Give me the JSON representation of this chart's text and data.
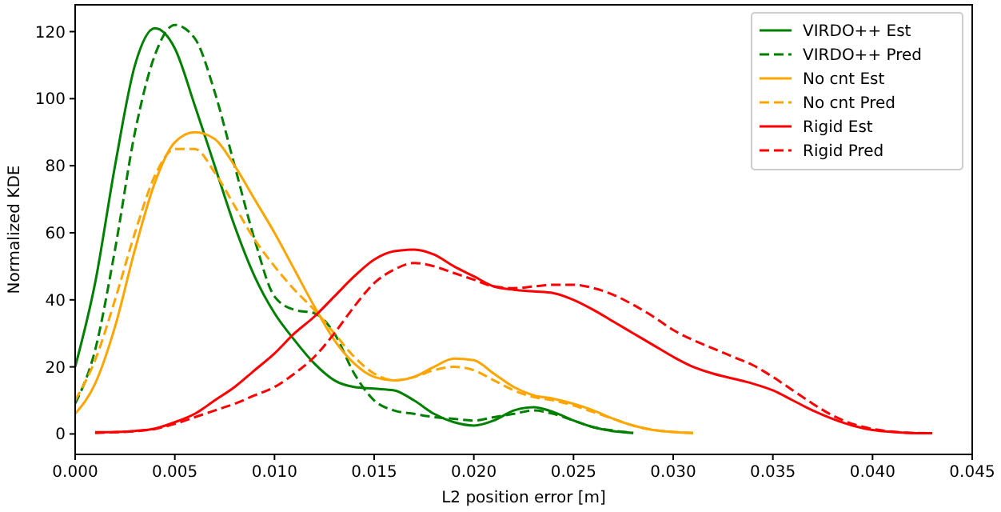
{
  "chart_data": {
    "type": "line",
    "xlabel": "L2 position error [m]",
    "ylabel": "Normalized KDE",
    "x": [
      0,
      0.001,
      0.002,
      0.003,
      0.004,
      0.005,
      0.006,
      0.007,
      0.008,
      0.009,
      0.01,
      0.011,
      0.012,
      0.013,
      0.014,
      0.015,
      0.016,
      0.017,
      0.018,
      0.019,
      0.02,
      0.021,
      0.022,
      0.023,
      0.024,
      0.025,
      0.026,
      0.027,
      0.028,
      0.029,
      0.03,
      0.031,
      0.032,
      0.033,
      0.034,
      0.035,
      0.036,
      0.037,
      0.038,
      0.039,
      0.04,
      0.041,
      0.042,
      0.043
    ],
    "series": [
      {
        "name": "VIRDO++ Est",
        "color": "#008000",
        "line_style": "solid",
        "values": [
          20,
          45,
          80,
          110,
          121,
          115,
          98,
          80,
          62,
          47,
          36,
          28,
          21,
          16,
          14,
          13.5,
          13,
          10,
          6,
          3.5,
          2.5,
          4,
          7,
          8,
          6.5,
          4,
          2,
          0.8,
          0.3,
          null,
          null,
          null,
          null,
          null,
          null,
          null,
          null,
          null,
          null,
          null,
          null,
          null,
          null,
          null
        ]
      },
      {
        "name": "VIRDO++ Pred",
        "color": "#008000",
        "line_style": "dashed",
        "values": [
          9,
          25,
          55,
          90,
          113,
          122,
          118,
          102,
          80,
          58,
          41,
          37,
          36,
          30,
          18,
          10,
          7,
          6,
          5,
          4.5,
          4,
          5,
          6,
          7,
          6,
          4,
          2,
          1,
          0.3,
          null,
          null,
          null,
          null,
          null,
          null,
          null,
          null,
          null,
          null,
          null,
          null,
          null,
          null,
          null
        ]
      },
      {
        "name": "No cnt Est",
        "color": "#ffa500",
        "line_style": "solid",
        "values": [
          6,
          15,
          32,
          55,
          75,
          87,
          90,
          88,
          80,
          70,
          60,
          49,
          38,
          28,
          21,
          17,
          16,
          17,
          20,
          22.5,
          22,
          18,
          14,
          11.5,
          10.5,
          9,
          7,
          4.5,
          2.5,
          1.2,
          0.6,
          0.3,
          null,
          null,
          null,
          null,
          null,
          null,
          null,
          null,
          null,
          null,
          null,
          null
        ]
      },
      {
        "name": "No cnt Pred",
        "color": "#ffa500",
        "line_style": "dashed",
        "values": [
          10,
          22,
          40,
          60,
          77,
          85,
          85,
          78,
          68,
          58,
          50,
          43,
          37,
          30,
          23,
          18,
          16,
          17,
          19,
          20,
          19,
          16,
          13,
          11,
          10,
          8.5,
          6.5,
          4.5,
          2.5,
          1.2,
          0.6,
          0.3,
          null,
          null,
          null,
          null,
          null,
          null,
          null,
          null,
          null,
          null,
          null,
          null
        ]
      },
      {
        "name": "Rigid Est",
        "color": "#ff0000",
        "line_style": "solid",
        "values": [
          null,
          0.5,
          0.6,
          0.9,
          1.6,
          3.5,
          6,
          10,
          14,
          19,
          24,
          30,
          35,
          41,
          47,
          52,
          54.5,
          55,
          53.5,
          50,
          47,
          44,
          43,
          42.5,
          42,
          40,
          37,
          33.5,
          30,
          26.5,
          23,
          20,
          18,
          16.5,
          15,
          13,
          10,
          7,
          4.5,
          2.5,
          1.2,
          0.6,
          0.3,
          0.2
        ]
      },
      {
        "name": "Rigid Pred",
        "color": "#ff0000",
        "line_style": "dashed",
        "values": [
          null,
          0.3,
          0.5,
          0.8,
          1.5,
          3,
          5,
          7,
          9,
          11.5,
          14,
          18,
          23,
          30,
          38,
          45,
          49,
          51,
          50,
          48,
          46,
          44,
          43.5,
          44,
          44.5,
          44.5,
          43.5,
          41.5,
          38.5,
          35,
          31,
          28,
          25.5,
          23,
          20.5,
          17,
          13,
          9,
          5.5,
          3,
          1.5,
          0.7,
          0.3,
          0.2
        ]
      }
    ],
    "xlim": [
      0,
      0.045
    ],
    "xticks": [
      {
        "value": 0,
        "label": "0.000"
      },
      {
        "value": 0.005,
        "label": "0.005"
      },
      {
        "value": 0.01,
        "label": "0.010"
      },
      {
        "value": 0.015,
        "label": "0.015"
      },
      {
        "value": 0.02,
        "label": "0.020"
      },
      {
        "value": 0.025,
        "label": "0.025"
      },
      {
        "value": 0.03,
        "label": "0.030"
      },
      {
        "value": 0.035,
        "label": "0.035"
      },
      {
        "value": 0.04,
        "label": "0.040"
      },
      {
        "value": 0.045,
        "label": "0.045"
      }
    ],
    "ylim": [
      -6.1,
      128
    ],
    "yticks": [
      0,
      20,
      40,
      60,
      80,
      100,
      120
    ],
    "legend": "top right",
    "grid": false,
    "marker": "none"
  }
}
